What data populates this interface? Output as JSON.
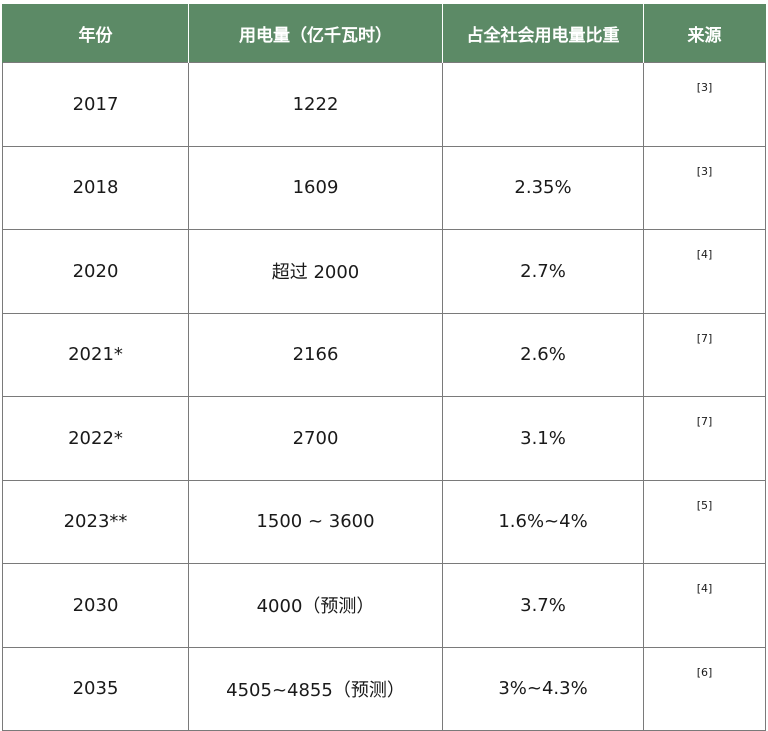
{
  "table": {
    "headers": [
      "年份",
      "用电量（亿千瓦时）",
      "占全社会用电量比重",
      "来源"
    ],
    "rows": [
      {
        "year": "2017",
        "usage": "1222",
        "share": "",
        "source": "[3]"
      },
      {
        "year": "2018",
        "usage": "1609",
        "share": "2.35%",
        "source": "[3]"
      },
      {
        "year": "2020",
        "usage": "超过 2000",
        "share": "2.7%",
        "source": "[4]"
      },
      {
        "year": "2021*",
        "usage": "2166",
        "share": "2.6%",
        "source": "[7]"
      },
      {
        "year": "2022*",
        "usage": "2700",
        "share": "3.1%",
        "source": "[7]"
      },
      {
        "year": "2023**",
        "usage": "1500 ~ 3600",
        "share": "1.6%~4%",
        "source": "[5]"
      },
      {
        "year": "2030",
        "usage": "4000（预测）",
        "share": "3.7%",
        "source": "[4]"
      },
      {
        "year": "2035",
        "usage": "4505~4855（预测）",
        "share": "3%~4.3%",
        "source": "[6]"
      }
    ]
  },
  "colors": {
    "header_bg": "#5c8a66",
    "header_text": "#ffffff",
    "border": "#7a7a7a"
  }
}
